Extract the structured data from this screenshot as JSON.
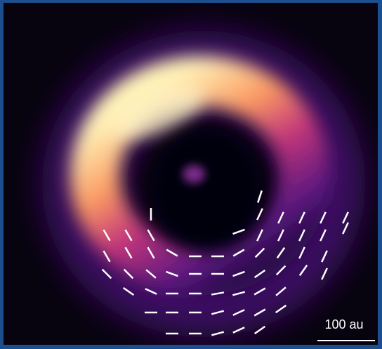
{
  "scale_bar": {
    "label": "100 au"
  }
}
